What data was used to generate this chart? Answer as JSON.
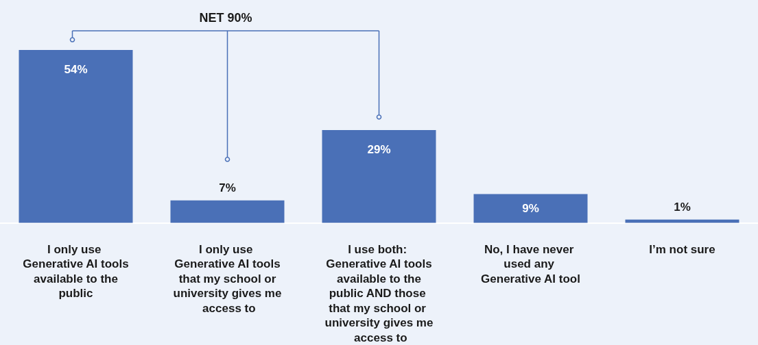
{
  "chart_data": {
    "type": "bar",
    "categories": [
      "I only use Generative AI tools available to the public",
      "I only use Generative AI tools that my school or university gives me access to",
      "I use both: Generative AI tools available to the public AND those that my school or university gives me access to",
      "No, I have never used any Generative AI tool",
      "I’m not sure"
    ],
    "values": [
      54,
      7,
      29,
      9,
      1
    ],
    "color": "#4a70b7",
    "value_labels": [
      "54%",
      "7%",
      "29%",
      "9%",
      "1%"
    ],
    "annotations": [
      "NET 90%"
    ]
  }
}
